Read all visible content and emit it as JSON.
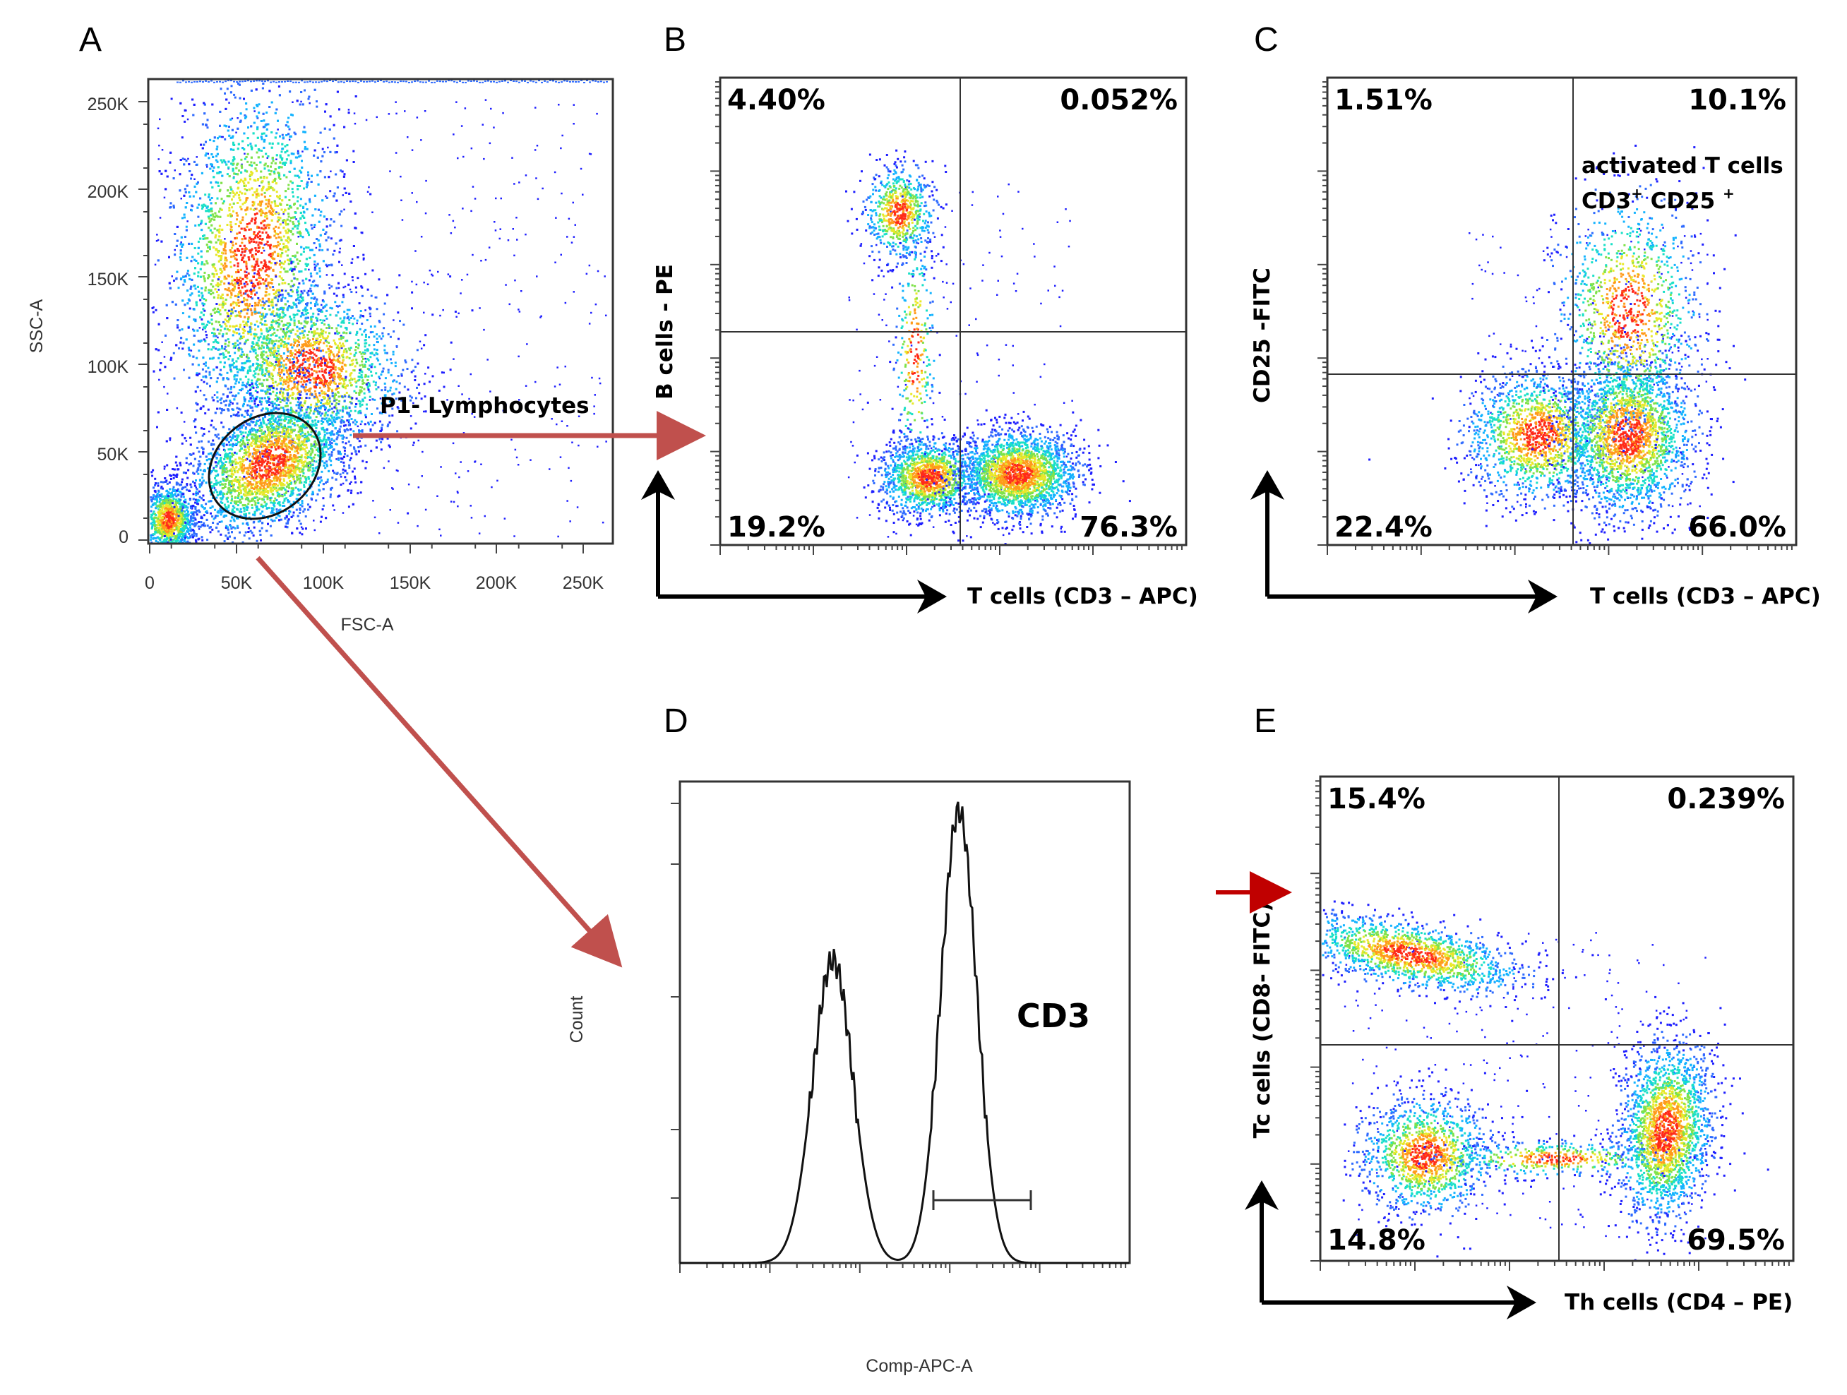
{
  "colors": {
    "arrow_red": "#c0504d",
    "arrow_red_dark": "#c00000",
    "axis_black": "#000000"
  },
  "chart_data": [
    {
      "panel": "A",
      "type": "scatter",
      "xlabel": "FSC-A",
      "ylabel": "SSC-A",
      "xlim": [
        0,
        262144
      ],
      "ylim": [
        0,
        262144
      ],
      "x_ticks": [
        "0",
        "50K",
        "100K",
        "150K",
        "200K",
        "250K"
      ],
      "y_ticks": [
        "0",
        "50K",
        "100K",
        "150K",
        "200K",
        "250K"
      ],
      "gate": {
        "name": "P1- Lymphocytes",
        "center": [
          65000,
          45000
        ],
        "rx": 30000,
        "ry": 25000
      }
    },
    {
      "panel": "B",
      "type": "scatter",
      "xlabel": "T cells (CD3 – APC)",
      "ylabel": "B cells - PE",
      "quadrants": {
        "upper_left": "4.40%",
        "upper_right": "0.052%",
        "lower_left": "19.2%",
        "lower_right": "76.3%"
      }
    },
    {
      "panel": "C",
      "type": "scatter",
      "xlabel": "T cells (CD3 – APC)",
      "ylabel": "CD25 -FITC",
      "annotation": [
        "activated T cells",
        "CD3⁺ CD25 ⁺"
      ],
      "quadrants": {
        "upper_left": "1.51%",
        "upper_right": "10.1%",
        "lower_left": "22.4%",
        "lower_right": "66.0%"
      }
    },
    {
      "panel": "D",
      "type": "line",
      "xlabel": "Comp-APC-A",
      "ylabel": "Count",
      "peak_label": "CD3",
      "series": [
        {
          "name": "CD3 histogram",
          "peaks": [
            {
              "position": 0.34,
              "height": 0.67
            },
            {
              "position": 0.62,
              "height": 1.0
            }
          ]
        }
      ]
    },
    {
      "panel": "E",
      "type": "scatter",
      "xlabel": "Th cells (CD4 – PE)",
      "ylabel": "Tc cells (CD8- FITC)",
      "quadrants": {
        "upper_left": "15.4%",
        "upper_right": "0.239%",
        "lower_left": "14.8%",
        "lower_right": "69.5%"
      }
    }
  ],
  "panels": {
    "a": {
      "letter": "A",
      "xlabel": "FSC-A",
      "ylabel": "SSC-A",
      "gate": "P1- Lymphocytes",
      "x_ticks": [
        "0",
        "50K",
        "100K",
        "150K",
        "200K",
        "250K"
      ],
      "y_ticks": [
        "0",
        "50K",
        "100K",
        "150K",
        "200K",
        "250K"
      ]
    },
    "b": {
      "letter": "B",
      "xlabel": "T cells (CD3 – APC)",
      "ylabel": "B cells - PE",
      "q_ul": "4.40%",
      "q_ur": "0.052%",
      "q_ll": "19.2%",
      "q_lr": "76.3%"
    },
    "c": {
      "letter": "C",
      "xlabel": "T cells (CD3 – APC)",
      "ylabel": "CD25 -FITC",
      "ann1": "activated T cells",
      "ann2a": "CD3",
      "ann2b": "+",
      "ann2c": " CD25 ",
      "ann2d": "+",
      "q_ul": "1.51%",
      "q_ur": "10.1%",
      "q_ll": "22.4%",
      "q_lr": "66.0%"
    },
    "d": {
      "letter": "D",
      "xlabel": "Comp-APC-A",
      "ylabel": "Count",
      "peak": "CD3"
    },
    "e": {
      "letter": "E",
      "xlabel": "Th cells (CD4 – PE)",
      "ylabel": "Tc cells (CD8- FITC)",
      "q_ul": "15.4%",
      "q_ur": "0.239%",
      "q_ll": "14.8%",
      "q_lr": "69.5%"
    }
  }
}
